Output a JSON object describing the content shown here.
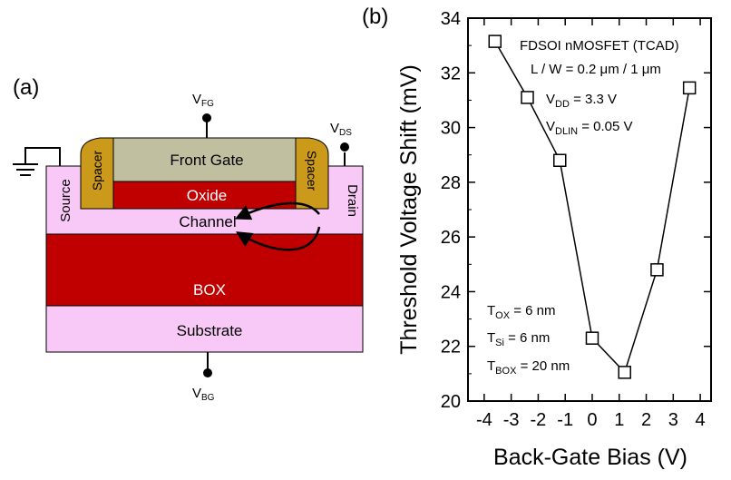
{
  "panel_a": {
    "label": "(a)",
    "terminals": {
      "front_gate": {
        "main": "V",
        "sub": "FG"
      },
      "drain": {
        "main": "V",
        "sub": "DS"
      },
      "back_gate": {
        "main": "V",
        "sub": "BG"
      }
    },
    "layers": {
      "front_gate": "Front Gate",
      "oxide": "Oxide",
      "channel": "Channel",
      "box": "BOX",
      "substrate": "Substrate",
      "source": "Source",
      "drain": "Drain",
      "spacer_left": "Spacer",
      "spacer_right": "Spacer"
    },
    "colors": {
      "gate": "#c0bf9f",
      "spacer": "#cc9a1a",
      "oxide": "#c00000",
      "box": "#c00000",
      "channel": "#f8c8f6",
      "substrate": "#f8c8f6"
    }
  },
  "panel_b": {
    "label": "(b)",
    "annotations": {
      "device": "FDSOI nMOSFET (TCAD)",
      "lw": "L / W = 0.2 μm / 1 μm",
      "vdd": {
        "main": "V",
        "sub": "DD",
        "rest": " = 3.3 V"
      },
      "vdlin": {
        "main": "V",
        "sub": "DLIN",
        "rest": " = 0.05 V"
      },
      "tox": {
        "main": "T",
        "sub": "OX",
        "rest": " = 6 nm"
      },
      "tsi": {
        "main": "T",
        "sub": "Si",
        "rest": " = 6 nm"
      },
      "tbox": {
        "main": "T",
        "sub": "BOX",
        "rest": " = 20 nm"
      }
    }
  },
  "chart_data": {
    "type": "line",
    "xlabel": "Back-Gate Bias (V)",
    "ylabel": "Threshold Voltage Shift (mV)",
    "xlim": [
      -4.6,
      4.4
    ],
    "ylim": [
      20,
      34
    ],
    "xticks": [
      "-4",
      "-3",
      "-2",
      "-1",
      "0",
      "1",
      "2",
      "3",
      "4"
    ],
    "yticks": [
      "20",
      "22",
      "24",
      "26",
      "28",
      "30",
      "32",
      "34"
    ],
    "marker": "open-square",
    "series": [
      {
        "x": [
          -3.6,
          -2.4,
          -1.2,
          0.0,
          1.2,
          2.4,
          3.6
        ],
        "values": [
          33.15,
          31.1,
          28.8,
          22.3,
          21.05,
          24.8,
          31.45
        ]
      }
    ]
  }
}
